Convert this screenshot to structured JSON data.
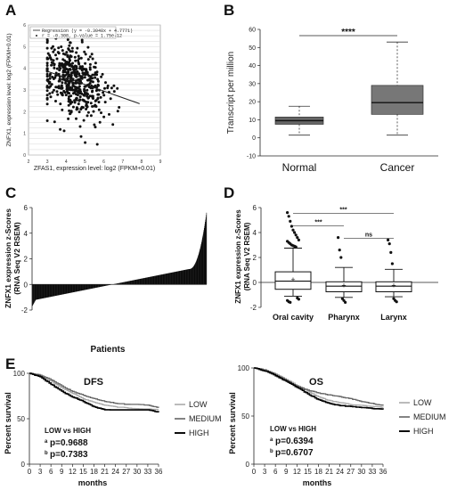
{
  "panel_labels": {
    "a": "A",
    "b": "B",
    "c": "C",
    "d": "D",
    "e": "E"
  },
  "chart_data": [
    {
      "panel": "A",
      "type": "scatter",
      "xlabel": "ZFAS1, expression level: log2 (FPKM+0.01)",
      "ylabel": "ZNFX1, expression level: log2 (FPKM+0.01)",
      "xlim": [
        2,
        9
      ],
      "ylim": [
        0,
        6
      ],
      "xticks": [
        "2",
        "3",
        "4",
        "5",
        "6",
        "7",
        "8",
        "9"
      ],
      "yticks": [
        "0",
        "1",
        "2",
        "3",
        "4",
        "5",
        "6"
      ],
      "legend": {
        "regression": "Regression (y = -0.3048x + 4.7771)",
        "stats": "r = -0.308, p-value = 1.75e-12"
      },
      "regression": {
        "slope": -0.3048,
        "intercept": 4.7771,
        "x_range": [
          3.0,
          7.9
        ]
      },
      "point_count": 500,
      "point_cloud": {
        "x_center": 4.4,
        "x_spread": 0.85,
        "y_spread": 0.8
      }
    },
    {
      "panel": "B",
      "type": "box",
      "ylabel": "Transcript per million",
      "ylim": [
        -10,
        60
      ],
      "yticks": [
        "-10",
        "0",
        "10",
        "20",
        "30",
        "40",
        "50",
        "60"
      ],
      "categories": [
        "Normal",
        "Cancer"
      ],
      "boxes": [
        {
          "name": "Normal",
          "min": 1.5,
          "q1": 7.5,
          "median": 9.5,
          "q3": 11.5,
          "max": 17.5
        },
        {
          "name": "Cancer",
          "min": 1.5,
          "q1": 13,
          "median": 19.5,
          "q3": 29,
          "max": 53
        }
      ],
      "significance": "****"
    },
    {
      "panel": "C",
      "type": "bar",
      "xlabel": "Patients",
      "ylabel_line1": "ZNFX1 expression z-Scores",
      "ylabel_line2": "(RNA Seq V2 RSEM)",
      "ylim": [
        -2,
        6
      ],
      "yticks": [
        "-2",
        "0",
        "2",
        "4",
        "6"
      ],
      "sorted_values": {
        "min": -1.7,
        "max": 5.6,
        "n_bars": 520
      }
    },
    {
      "panel": "D",
      "type": "box",
      "ylabel_line1": "ZNFX1 expression z-Scores",
      "ylabel_line2": "(RNA Seq V2 RSEM)",
      "ylim": [
        -2,
        6
      ],
      "yticks": [
        "-2",
        "0",
        "2",
        "4",
        "6"
      ],
      "categories": [
        "Oral cavity",
        "Pharynx",
        "Larynx"
      ],
      "boxes": [
        {
          "name": "Oral cavity",
          "min": -1.1,
          "q1": -0.55,
          "median": 0.1,
          "q3": 0.85,
          "max": 2.75,
          "mean": 0.2
        },
        {
          "name": "Pharynx",
          "min": -1.2,
          "q1": -0.75,
          "median": -0.3,
          "q3": 0.05,
          "max": 1.2,
          "mean": -0.25
        },
        {
          "name": "Larynx",
          "min": -1.15,
          "q1": -0.75,
          "median": -0.3,
          "q3": 0.05,
          "max": 1.05,
          "mean": -0.25
        }
      ],
      "outliers": [
        {
          "group": 0,
          "values": [
            5.6,
            5.3,
            4.9,
            4.5,
            4.2,
            4.0,
            3.8,
            3.6,
            3.4,
            3.3,
            3.2,
            3.1,
            3.0,
            2.95,
            2.9,
            2.85,
            -1.25,
            -1.35,
            -1.45,
            -1.55,
            -1.6
          ]
        },
        {
          "group": 1,
          "values": [
            3.6,
            2.6,
            2.0,
            -1.3,
            -1.45,
            -1.6
          ]
        },
        {
          "group": 2,
          "values": [
            3.4,
            3.1,
            2.4,
            1.5,
            -1.3,
            -1.45,
            -1.55
          ]
        }
      ],
      "comparisons": [
        {
          "from": 0,
          "to": 2,
          "label": "***"
        },
        {
          "from": 0,
          "to": 1,
          "label": "***"
        },
        {
          "from": 1,
          "to": 2,
          "label": "ns"
        }
      ]
    },
    {
      "panel": "E-DFS",
      "type": "line",
      "title": "DFS",
      "xlabel": "months",
      "ylabel": "Percent survival",
      "xlim": [
        0,
        36
      ],
      "ylim": [
        0,
        100
      ],
      "xticks": [
        "0",
        "3",
        "6",
        "9",
        "12",
        "15",
        "18",
        "21",
        "24",
        "27",
        "30",
        "33",
        "36"
      ],
      "yticks": [
        "0",
        "50",
        "100"
      ],
      "legend": [
        "LOW",
        "MEDIUM",
        "HIGH"
      ],
      "annotation": "LOW vs HIGH",
      "pvalues": [
        {
          "sup": "a",
          "text": "p=0.9688"
        },
        {
          "sup": "b",
          "text": "p=0.7383"
        }
      ],
      "series": [
        {
          "name": "LOW",
          "points": [
            [
              0,
              100
            ],
            [
              3,
              97
            ],
            [
              6,
              91
            ],
            [
              9,
              84
            ],
            [
              12,
              78
            ],
            [
              15,
              72
            ],
            [
              18,
              68
            ],
            [
              21,
              65
            ],
            [
              24,
              63
            ],
            [
              27,
              62
            ],
            [
              30,
              61
            ],
            [
              33,
              61
            ],
            [
              36,
              60
            ]
          ]
        },
        {
          "name": "MEDIUM",
          "points": [
            [
              0,
              100
            ],
            [
              3,
              98
            ],
            [
              6,
              93
            ],
            [
              9,
              86
            ],
            [
              12,
              80
            ],
            [
              15,
              76
            ],
            [
              18,
              72
            ],
            [
              21,
              69
            ],
            [
              24,
              67
            ],
            [
              27,
              66
            ],
            [
              30,
              66
            ],
            [
              33,
              65
            ],
            [
              36,
              62
            ]
          ]
        },
        {
          "name": "HIGH",
          "points": [
            [
              0,
              100
            ],
            [
              3,
              96
            ],
            [
              6,
              88
            ],
            [
              9,
              80
            ],
            [
              12,
              74
            ],
            [
              15,
              69
            ],
            [
              18,
              63
            ],
            [
              21,
              60
            ],
            [
              24,
              60
            ],
            [
              27,
              60
            ],
            [
              30,
              60
            ],
            [
              33,
              60
            ],
            [
              36,
              57
            ]
          ]
        }
      ]
    },
    {
      "panel": "E-OS",
      "type": "line",
      "title": "OS",
      "xlabel": "months",
      "ylabel": "Percent survival",
      "xlim": [
        0,
        36
      ],
      "ylim": [
        0,
        100
      ],
      "xticks": [
        "0",
        "3",
        "6",
        "9",
        "12",
        "15",
        "18",
        "21",
        "24",
        "27",
        "30",
        "33",
        "36"
      ],
      "yticks": [
        "0",
        "50",
        "100"
      ],
      "legend": [
        "LOW",
        "MEDIUM",
        "HIGH"
      ],
      "annotation": "LOW vs HIGH",
      "pvalues": [
        {
          "sup": "a",
          "text": "p=0.6394"
        },
        {
          "sup": "b",
          "text": "p=0.6707"
        }
      ],
      "series": [
        {
          "name": "LOW",
          "points": [
            [
              0,
              100
            ],
            [
              3,
              98
            ],
            [
              6,
              94
            ],
            [
              9,
              88
            ],
            [
              12,
              82
            ],
            [
              15,
              76
            ],
            [
              18,
              70
            ],
            [
              21,
              66
            ],
            [
              24,
              64
            ],
            [
              27,
              62
            ],
            [
              30,
              61
            ],
            [
              33,
              60
            ],
            [
              36,
              59
            ]
          ]
        },
        {
          "name": "MEDIUM",
          "points": [
            [
              0,
              100
            ],
            [
              3,
              98
            ],
            [
              6,
              93
            ],
            [
              9,
              87
            ],
            [
              12,
              81
            ],
            [
              15,
              77
            ],
            [
              18,
              74
            ],
            [
              21,
              72
            ],
            [
              24,
              70
            ],
            [
              27,
              68
            ],
            [
              30,
              65
            ],
            [
              33,
              63
            ],
            [
              36,
              61
            ]
          ]
        },
        {
          "name": "HIGH",
          "points": [
            [
              0,
              100
            ],
            [
              3,
              97
            ],
            [
              6,
              92
            ],
            [
              9,
              86
            ],
            [
              12,
              80
            ],
            [
              15,
              73
            ],
            [
              18,
              67
            ],
            [
              21,
              63
            ],
            [
              24,
              61
            ],
            [
              27,
              60
            ],
            [
              30,
              59
            ],
            [
              33,
              58
            ],
            [
              36,
              57
            ]
          ]
        }
      ]
    }
  ],
  "colors": {
    "low": "#aaaaaa",
    "medium": "#666666",
    "high": "#000000",
    "box_normal": "#666666",
    "box_cancer": "#777777"
  }
}
